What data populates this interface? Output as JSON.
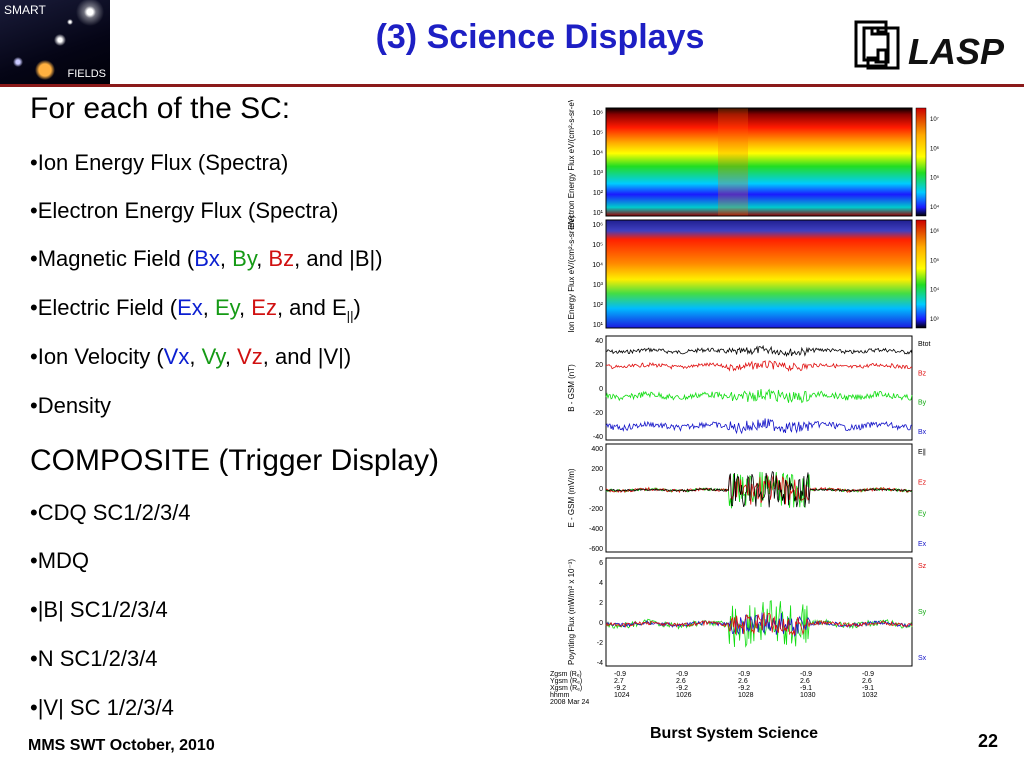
{
  "header": {
    "logo_left": {
      "top_text": "SMART",
      "bottom_text": "FIELDS"
    },
    "title": "(3) Science Displays",
    "logo_right_text": "LASP",
    "rule_color": "#8b1a1a",
    "title_color": "#1d1fc4"
  },
  "bullets": {
    "section1": "For each of the SC:",
    "items1": [
      "•Ion Energy Flux (Spectra)",
      "•Electron Energy Flux (Spectra)"
    ],
    "mag": {
      "prefix": "•Magnetic Field (",
      "x": "Bx",
      "sep1": ", ",
      "y": "By",
      "sep2": ", ",
      "z": "Bz",
      "suffix": ", and |B|)"
    },
    "efield": {
      "prefix": "•Electric Field (",
      "x": "Ex",
      "sep1": ", ",
      "y": "Ey",
      "sep2": ", ",
      "z": "Ez",
      "suffix": ", and E",
      "sub": "||",
      "close": ")"
    },
    "vel": {
      "prefix": "•Ion Velocity (",
      "x": "Vx",
      "sep1": ", ",
      "y": "Vy",
      "sep2": ", ",
      "z": "Vz",
      "suffix": ", and |V|)"
    },
    "density": "•Density",
    "section2": "COMPOSITE (Trigger Display)",
    "items2": [
      "•CDQ SC1/2/3/4",
      "•MDQ",
      "•|B| SC1/2/3/4",
      "•N SC1/2/3/4",
      "•|V| SC 1/2/3/4"
    ],
    "colors": {
      "x": "#0b1fd1",
      "y": "#159a15",
      "z": "#d01010"
    }
  },
  "figure": {
    "panels": [
      {
        "ylabel": "Electron Energy Flux eV/(cm²-s-sr-eV)",
        "yticks": [
          "10⁶",
          "10⁵",
          "10⁴",
          "10³",
          "10²",
          "10¹"
        ],
        "cbar_ticks": [
          "10⁷",
          "10⁶",
          "10⁵",
          "10⁴"
        ]
      },
      {
        "ylabel": "Ion Energy Flux eV/(cm²-s-sr-eV)",
        "yticks": [
          "10⁶",
          "10⁵",
          "10⁴",
          "10³",
          "10²",
          "10¹"
        ],
        "cbar_ticks": [
          "10⁶",
          "10⁵",
          "10⁴",
          "10³"
        ]
      },
      {
        "ylabel": "B - GSM (nT)",
        "yticks": [
          "40",
          "20",
          "0",
          "-20",
          "-40"
        ],
        "legend": [
          "Btot",
          "Bz",
          "By",
          "Bx"
        ]
      },
      {
        "ylabel": "E - GSM (mV/m)",
        "yticks": [
          "400",
          "200",
          "0",
          "-200",
          "-400",
          "-600"
        ],
        "legend": [
          "E∥",
          "Ez",
          "Ey",
          "Ex"
        ]
      },
      {
        "ylabel": "Poynting Flux (mW/m² x 10⁻³)",
        "yticks": [
          "6",
          "4",
          "2",
          "0",
          "-2",
          "-4"
        ],
        "legend": [
          "Sz",
          "Sy",
          "Sx"
        ]
      }
    ],
    "xaxis": {
      "row_labels": [
        "Zgsm (Rₑ)",
        "Ygsm (Rₑ)",
        "Xgsm (Rₑ)",
        "hhmm",
        "2008 Mar 24"
      ],
      "columns": [
        [
          "-0.9",
          "2.7",
          "-9.2",
          "1024"
        ],
        [
          "-0.9",
          "2.6",
          "-9.2",
          "1026"
        ],
        [
          "-0.9",
          "2.6",
          "-9.2",
          "1028"
        ],
        [
          "-0.9",
          "2.6",
          "-9.1",
          "1030"
        ],
        [
          "-0.9",
          "2.6",
          "-9.1",
          "1032"
        ]
      ]
    },
    "line_colors": {
      "black": "#000000",
      "red": "#e01010",
      "green": "#11dd11",
      "blue": "#1414c8"
    }
  },
  "footer": {
    "left": "MMS SWT October, 2010",
    "center": "Burst System Science",
    "page": "22"
  }
}
